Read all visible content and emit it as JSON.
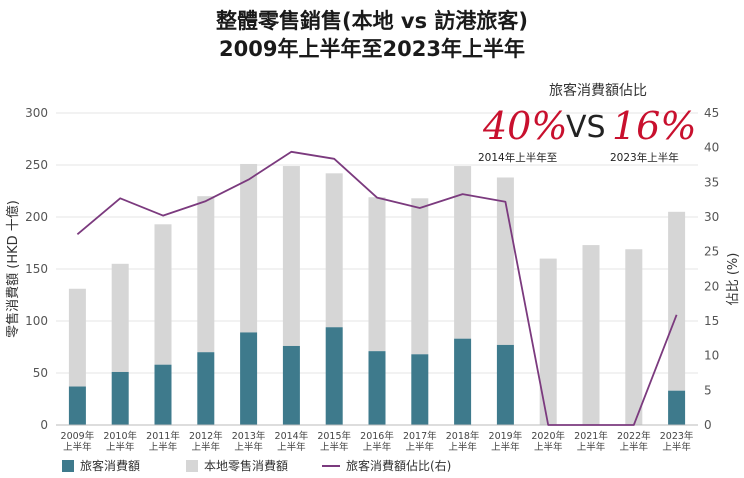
{
  "title_line1": "整體零售銷售(本地 vs 訪港旅客)",
  "title_line2": "2009年上半年至2023年上半年",
  "annotation": {
    "heading": "旅客消費額佔比",
    "left_value": "40%",
    "vs": "VS",
    "right_value": "16%",
    "left_caption": "2014年上半年至",
    "right_caption": "2023年上半年"
  },
  "legend": {
    "tourist": "旅客消費額",
    "local": "本地零售消費額",
    "share": "旅客消費額佔比(右)"
  },
  "colors": {
    "tourist": "#3e7a8c",
    "local": "#d6d6d6",
    "line": "#7b3a7e",
    "highlight": "#c8102e"
  },
  "chart_data": {
    "type": "bar",
    "stacked": true,
    "ylabel": "零售消費額 (HKD 十億)",
    "y2label": "佔比 (%)",
    "ylim": [
      0,
      300
    ],
    "yticks": [
      0,
      50,
      100,
      150,
      200,
      250,
      300
    ],
    "y2lim": [
      0,
      45
    ],
    "y2ticks": [
      0,
      5,
      10,
      15,
      20,
      25,
      30,
      35,
      40,
      45
    ],
    "categories": [
      [
        "2009年",
        "上半年"
      ],
      [
        "2010年",
        "上半年"
      ],
      [
        "2011年",
        "上半年"
      ],
      [
        "2012年",
        "上半年"
      ],
      [
        "2013年",
        "上半年"
      ],
      [
        "2014年",
        "上半年"
      ],
      [
        "2015年",
        "上半年"
      ],
      [
        "2016年",
        "上半年"
      ],
      [
        "2017年",
        "上半年"
      ],
      [
        "2018年",
        "上半年"
      ],
      [
        "2019年",
        "上半年"
      ],
      [
        "2020年",
        "上半年"
      ],
      [
        "2021年",
        "上半年"
      ],
      [
        "2022年",
        "上半年"
      ],
      [
        "2023年",
        "上半年"
      ]
    ],
    "series": [
      {
        "name": "旅客消費額",
        "values": [
          37,
          51,
          58,
          70,
          89,
          76,
          94,
          71,
          68,
          83,
          77,
          0,
          0,
          0,
          33
        ]
      },
      {
        "name": "本地零售消費額",
        "values": [
          94,
          104,
          135,
          150,
          162,
          173,
          148,
          148,
          150,
          166,
          161,
          160,
          173,
          169,
          172
        ]
      },
      {
        "name": "旅客消費額佔比(右)",
        "axis": "right",
        "values": [
          27.5,
          32.7,
          30.2,
          32.3,
          35.4,
          39.4,
          38.4,
          32.8,
          31.3,
          33.3,
          32.2,
          0,
          0,
          0,
          15.9
        ]
      }
    ],
    "grid": true,
    "legend_position": "bottom-left"
  }
}
